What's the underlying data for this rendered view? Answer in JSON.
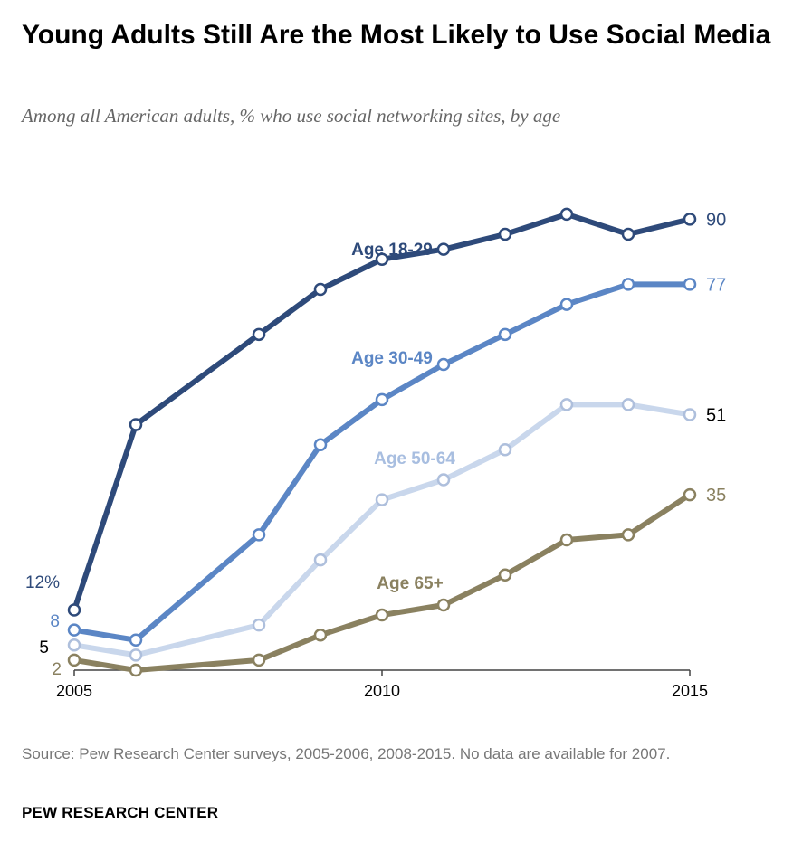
{
  "title": "Young Adults Still Are the Most Likely to Use Social Media",
  "subtitle": "Among all American adults, % who use social networking sites, by age",
  "source": "Source: Pew Research Center surveys, 2005-2006, 2008-2015. No data are available for 2007.",
  "brand": "PEW RESEARCH CENTER",
  "chart_data": {
    "type": "line",
    "title": "Young Adults Still Are the Most Likely to Use Social Media",
    "subtitle": "Among all American adults, % who use social networking sites, by age",
    "xlabel": "",
    "ylabel": "",
    "x_ticks": [
      2005,
      2010,
      2015
    ],
    "xlim": [
      2005,
      2015
    ],
    "ylim": [
      0,
      100
    ],
    "grid": false,
    "legend": "inline labels",
    "series": [
      {
        "name": "Age 18-29",
        "color": "#2e4a7a",
        "x": [
          2005,
          2006,
          2008,
          2009,
          2010,
          2011,
          2012,
          2013,
          2014,
          2015
        ],
        "values": [
          12,
          49,
          67,
          76,
          82,
          84,
          87,
          91,
          87,
          90
        ],
        "start_label": "12%",
        "end_label": "90"
      },
      {
        "name": "Age 30-49",
        "color": "#5b86c5",
        "x": [
          2005,
          2006,
          2008,
          2009,
          2010,
          2011,
          2012,
          2013,
          2014,
          2015
        ],
        "values": [
          8,
          6,
          27,
          45,
          54,
          61,
          67,
          73,
          77,
          77
        ],
        "start_label": "8",
        "end_label": "77"
      },
      {
        "name": "Age 50-64",
        "color": "#c9d7ec",
        "x": [
          2005,
          2006,
          2008,
          2009,
          2010,
          2011,
          2012,
          2013,
          2014,
          2015
        ],
        "values": [
          5,
          3,
          9,
          22,
          34,
          38,
          44,
          53,
          53,
          51
        ],
        "start_label": "5",
        "end_label": "51"
      },
      {
        "name": "Age 65+",
        "color": "#8a8160",
        "x": [
          2005,
          2006,
          2008,
          2009,
          2010,
          2011,
          2012,
          2013,
          2014,
          2015
        ],
        "values": [
          2,
          0,
          2,
          7,
          11,
          13,
          19,
          26,
          27,
          35
        ],
        "start_label": "2",
        "end_label": "35"
      }
    ]
  }
}
